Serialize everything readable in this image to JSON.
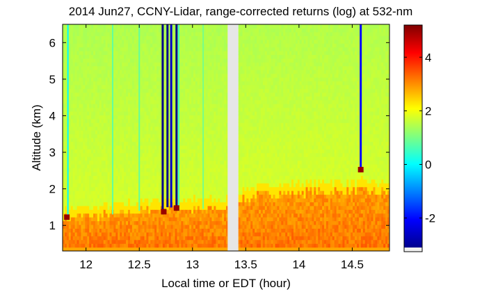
{
  "chart_data": {
    "type": "heatmap",
    "title": "2014 Jun27, CCNY-Lidar, range-corrected returns (log) at 532-nm",
    "xlabel": "Local time or EDT (hour)",
    "ylabel": "Altitude (km)",
    "xlim": [
      11.78,
      14.85
    ],
    "ylim": [
      0.3,
      6.5
    ],
    "x_ticks": [
      12,
      12.5,
      13,
      13.5,
      14,
      14.5
    ],
    "x_tick_labels": [
      "12",
      "12.5",
      "13",
      "13.5",
      "14",
      "14.5"
    ],
    "y_ticks": [
      1,
      2,
      3,
      4,
      5,
      6
    ],
    "y_tick_labels": [
      "1",
      "2",
      "3",
      "4",
      "5",
      "6"
    ],
    "colorbar": {
      "clim": [
        -3.1,
        5.2
      ],
      "ticks": [
        -2,
        0,
        2,
        4
      ],
      "tick_labels": [
        "-2",
        "0",
        "2",
        "4"
      ],
      "colormap": "jet"
    },
    "data_gap": {
      "x": [
        13.33,
        13.43
      ],
      "color": "#e6e6e6"
    },
    "boundary_layer_top_km": [
      {
        "x": 11.8,
        "y": 1.2
      },
      {
        "x": 12.0,
        "y": 1.25
      },
      {
        "x": 12.25,
        "y": 1.3
      },
      {
        "x": 12.5,
        "y": 1.4
      },
      {
        "x": 12.75,
        "y": 1.5
      },
      {
        "x": 13.0,
        "y": 1.45
      },
      {
        "x": 13.3,
        "y": 1.45
      },
      {
        "x": 13.45,
        "y": 1.7
      },
      {
        "x": 13.75,
        "y": 1.9
      },
      {
        "x": 14.0,
        "y": 1.9
      },
      {
        "x": 14.3,
        "y": 1.95
      },
      {
        "x": 14.6,
        "y": 1.95
      },
      {
        "x": 14.85,
        "y": 1.9
      }
    ],
    "cloud_events": [
      {
        "x": 11.82,
        "y_bottom": 1.15,
        "value": 5
      },
      {
        "x": 12.73,
        "y_bottom": 1.3,
        "value": 5
      },
      {
        "x": 12.85,
        "y_bottom": 1.4,
        "value": 5
      },
      {
        "x": 14.58,
        "y_bottom": 2.45,
        "value": 5
      }
    ],
    "signal_dropout_streaks": [
      {
        "x": 11.83,
        "value": 0
      },
      {
        "x": 12.25,
        "value": 0.8
      },
      {
        "x": 12.5,
        "value": 0.8
      },
      {
        "x": 12.72,
        "value": -3
      },
      {
        "x": 12.765,
        "value": -3
      },
      {
        "x": 12.8,
        "value": -2.5
      },
      {
        "x": 12.85,
        "value": -3
      },
      {
        "x": 12.87,
        "value": 0.5
      },
      {
        "x": 13.1,
        "value": 1.0
      },
      {
        "x": 14.58,
        "value": -2
      }
    ]
  }
}
